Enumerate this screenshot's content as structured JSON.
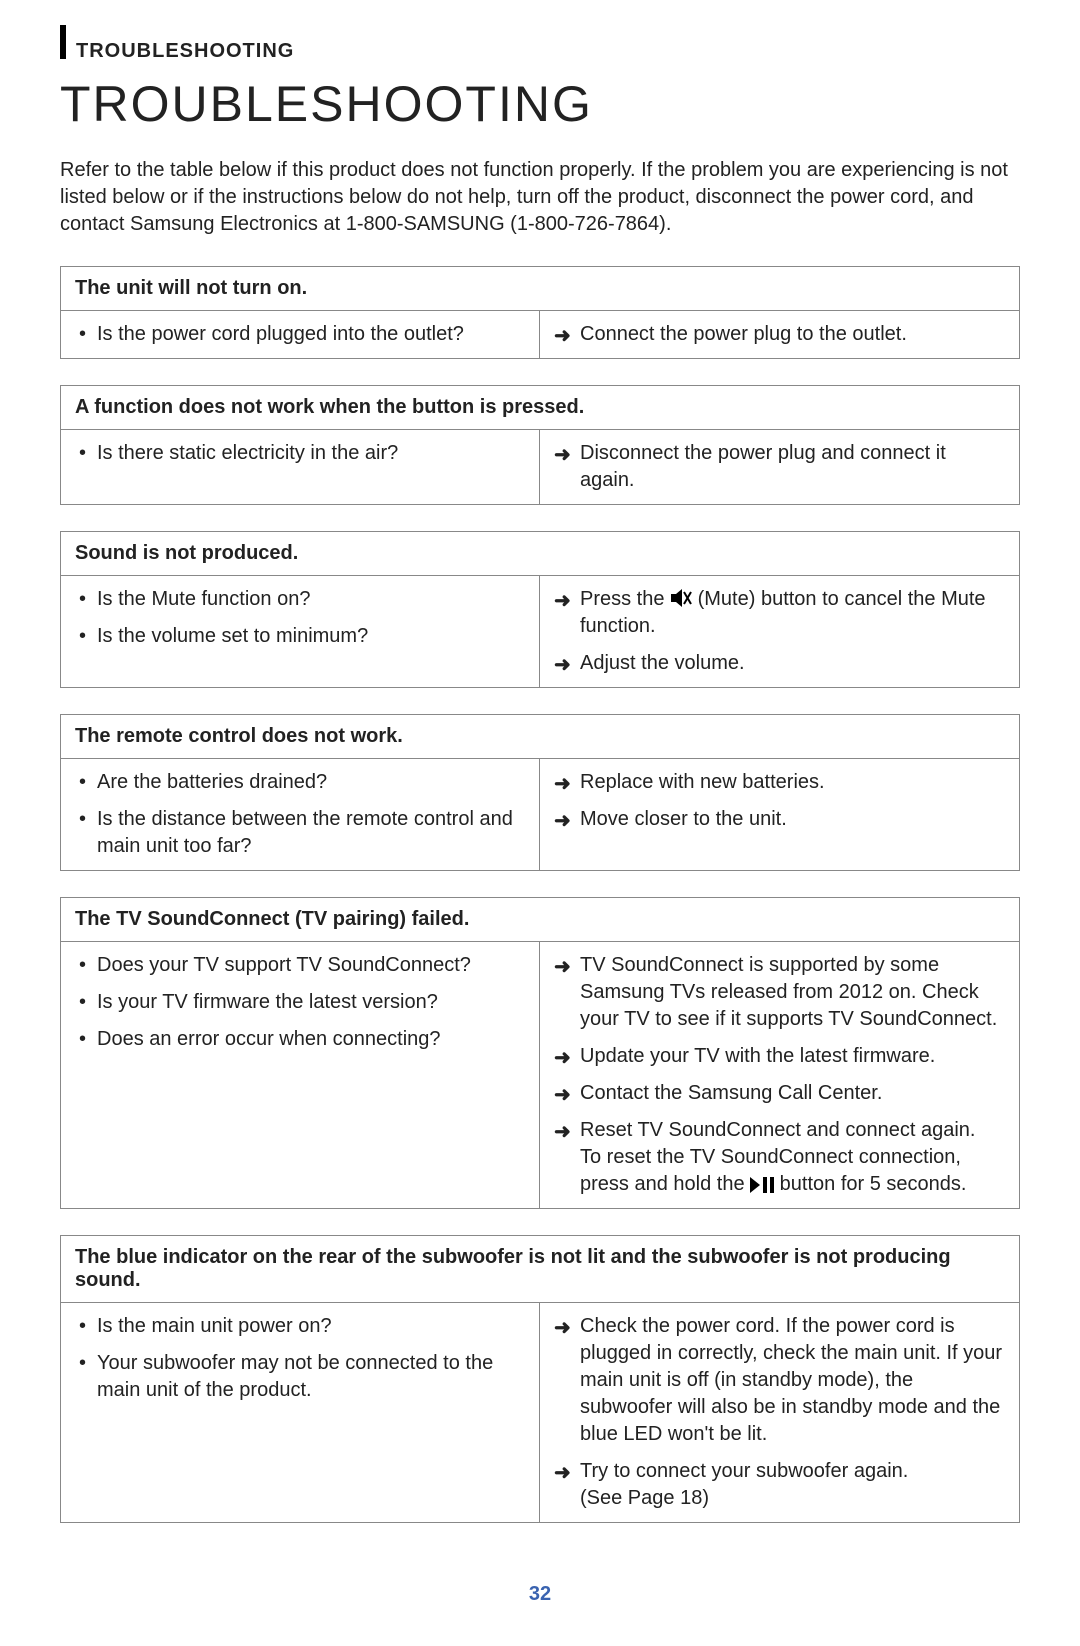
{
  "colors": {
    "text": "#222222",
    "border": "#888888",
    "accent_bar": "#000000",
    "page_number": "#3a63b0",
    "background": "#ffffff"
  },
  "header": {
    "section_label": "TROUBLESHOOTING",
    "title": "TROUBLESHOOTING"
  },
  "intro": "Refer to the table below if this product does not function properly. If the problem you are experiencing is not listed below or if the instructions below do not help, turn off the product, disconnect the power cord, and contact Samsung Electronics at 1-800-SAMSUNG (1-800-726-7864).",
  "blocks": [
    {
      "title": "The unit will not turn on.",
      "causes": [
        "Is the power cord plugged into the outlet?"
      ],
      "solutions": [
        {
          "text": "Connect the power plug to the outlet."
        }
      ]
    },
    {
      "title": "A function does not work when the button is pressed.",
      "causes": [
        "Is there static electricity in the air?"
      ],
      "solutions": [
        {
          "text": "Disconnect the power plug and connect it again."
        }
      ]
    },
    {
      "title": "Sound is not produced.",
      "causes": [
        "Is the Mute function on?",
        "Is the volume set to minimum?"
      ],
      "solutions": [
        {
          "text_pre": "Press the ",
          "icon": "mute-icon",
          "text_post": " (Mute) button to cancel the Mute function."
        },
        {
          "text": "Adjust the volume."
        }
      ]
    },
    {
      "title": "The remote control does not work.",
      "causes": [
        "Are the batteries drained?",
        "Is the distance between the remote control and main unit too far?"
      ],
      "solutions": [
        {
          "text": "Replace with new batteries."
        },
        {
          "text": "Move closer to the unit."
        }
      ]
    },
    {
      "title": "The TV SoundConnect (TV pairing) failed.",
      "causes": [
        "Does your TV support TV SoundConnect?",
        "Is your TV firmware the latest version?",
        "Does an error occur when connecting?"
      ],
      "solutions": [
        {
          "text": "TV SoundConnect is supported by some Samsung TVs released from 2012 on. Check your TV to see if it supports TV SoundConnect."
        },
        {
          "text": "Update your TV with the latest firmware."
        },
        {
          "text": "Contact the Samsung Call Center."
        },
        {
          "text_pre": "Reset TV SoundConnect and connect again.\nTo reset the TV SoundConnect connection, press and hold the ",
          "icon": "play-pause-icon",
          "text_post": " button for 5 seconds."
        }
      ]
    },
    {
      "title": "The blue indicator on the rear of the subwoofer is not lit and the subwoofer is not producing sound.",
      "causes": [
        "Is the main unit power on?",
        "Your subwoofer may not be connected to the main unit of the product."
      ],
      "solutions": [
        {
          "text": "Check the power cord. If the power cord is plugged in correctly, check the main unit. If your main unit is off (in standby mode), the subwoofer will also be in standby mode and the blue LED won't be lit."
        },
        {
          "text": "Try to connect your subwoofer again.\n(See Page 18)"
        }
      ]
    }
  ],
  "page_number": "32"
}
